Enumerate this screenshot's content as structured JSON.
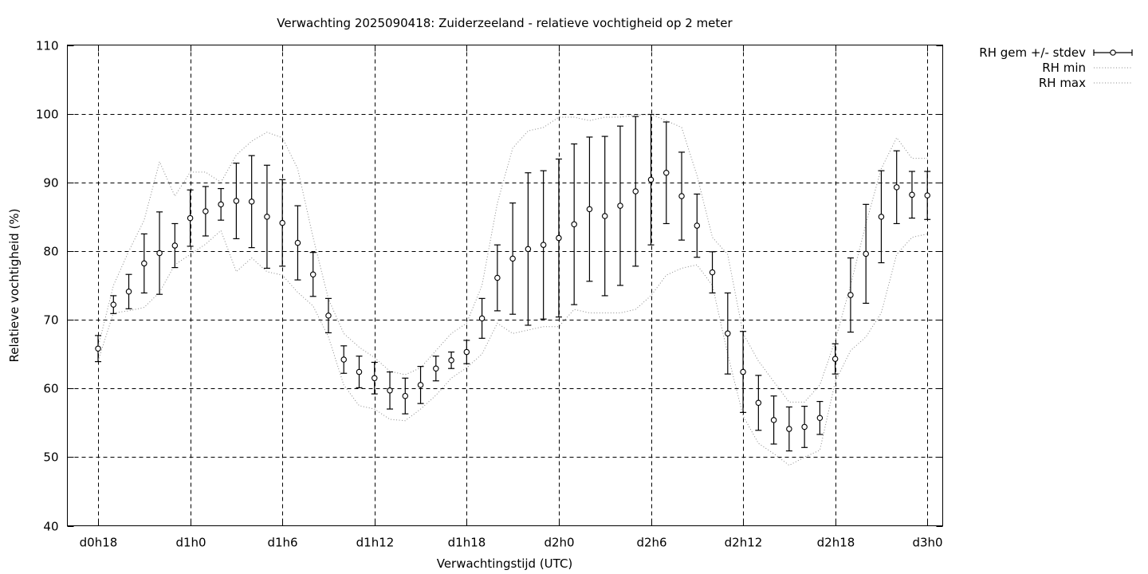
{
  "chart_data": {
    "type": "line",
    "title": "Verwachting 2025090418: Zuiderzeeland - relatieve vochtigheid op 2 meter",
    "xlabel": "Verwachtingstijd (UTC)",
    "ylabel": "Relatieve vochtigheid (%)",
    "ylim": [
      40,
      110
    ],
    "yticks": [
      40,
      50,
      60,
      70,
      80,
      90,
      100,
      110
    ],
    "xlim": [
      16,
      73
    ],
    "xticks": [
      {
        "x": 18,
        "label": "d0h18"
      },
      {
        "x": 24,
        "label": "d1h0"
      },
      {
        "x": 30,
        "label": "d1h6"
      },
      {
        "x": 36,
        "label": "d1h12"
      },
      {
        "x": 42,
        "label": "d1h18"
      },
      {
        "x": 48,
        "label": "d2h0"
      },
      {
        "x": 54,
        "label": "d2h6"
      },
      {
        "x": 60,
        "label": "d2h12"
      },
      {
        "x": 66,
        "label": "d2h18"
      },
      {
        "x": 72,
        "label": "d3h0"
      }
    ],
    "grid": true,
    "legend_position": "outside-top-right",
    "series": [
      {
        "name": "RH gem +/- stdev",
        "style": "errorbars",
        "x": [
          18,
          19,
          20,
          21,
          22,
          23,
          24,
          25,
          26,
          27,
          28,
          29,
          30,
          31,
          32,
          33,
          34,
          35,
          36,
          37,
          38,
          39,
          40,
          41,
          42,
          43,
          44,
          45,
          46,
          47,
          48,
          49,
          50,
          51,
          52,
          53,
          54,
          55,
          56,
          57,
          58,
          59,
          60,
          61,
          62,
          63,
          64,
          65,
          66,
          67,
          68,
          69,
          70,
          71,
          72
        ],
        "mean": [
          65.8,
          72.2,
          74.1,
          78.2,
          79.7,
          80.8,
          84.8,
          85.8,
          86.8,
          87.3,
          87.2,
          85.0,
          84.1,
          81.2,
          76.6,
          70.6,
          64.2,
          62.4,
          61.5,
          59.7,
          58.9,
          60.5,
          62.9,
          64.1,
          65.3,
          70.2,
          76.1,
          78.9,
          80.3,
          80.9,
          81.9,
          83.9,
          86.1,
          85.1,
          86.6,
          88.7,
          90.4,
          91.4,
          88.0,
          83.7,
          76.9,
          68.0,
          62.4,
          57.9,
          55.4,
          54.1,
          54.4,
          55.7,
          64.3,
          73.6,
          79.6,
          85.0,
          89.3,
          88.2,
          88.1
        ],
        "sd": [
          1.9,
          1.3,
          2.5,
          4.3,
          6.0,
          3.2,
          4.1,
          3.6,
          2.3,
          5.5,
          6.7,
          7.5,
          6.3,
          5.4,
          3.2,
          2.5,
          2.0,
          2.3,
          2.3,
          2.7,
          2.6,
          2.7,
          1.8,
          1.2,
          1.7,
          2.9,
          4.8,
          8.1,
          11.1,
          10.8,
          11.5,
          11.7,
          10.5,
          11.6,
          11.6,
          10.9,
          9.5,
          7.4,
          6.4,
          4.6,
          3.0,
          5.9,
          5.9,
          4.0,
          3.5,
          3.2,
          3.0,
          2.4,
          2.2,
          5.4,
          7.2,
          6.7,
          5.3,
          3.4,
          3.5
        ]
      },
      {
        "name": "RH min",
        "style": "dotted",
        "x": [
          18,
          19,
          20,
          21,
          22,
          23,
          24,
          25,
          26,
          27,
          28,
          29,
          30,
          31,
          32,
          33,
          34,
          35,
          36,
          37,
          38,
          39,
          40,
          41,
          42,
          43,
          44,
          45,
          46,
          47,
          48,
          49,
          50,
          51,
          52,
          53,
          54,
          55,
          56,
          57,
          58,
          59,
          60,
          61,
          62,
          63,
          64,
          65,
          66,
          67,
          68,
          69,
          70,
          71,
          72
        ],
        "values": [
          64.0,
          71.0,
          71.3,
          71.8,
          74.0,
          78.0,
          79.5,
          81.0,
          83.0,
          77.0,
          79.0,
          77.0,
          76.5,
          74.0,
          72.0,
          67.5,
          60.5,
          57.5,
          57.0,
          55.5,
          55.3,
          57.0,
          59.0,
          61.5,
          63.0,
          65.0,
          69.5,
          68.0,
          68.5,
          69.0,
          69.0,
          71.5,
          71.0,
          71.0,
          71.0,
          71.5,
          73.5,
          76.5,
          77.5,
          78.0,
          75.0,
          65.0,
          56.0,
          52.0,
          50.5,
          48.8,
          50.0,
          51.0,
          61.0,
          65.5,
          67.5,
          71.0,
          79.5,
          82.0,
          82.5
        ]
      },
      {
        "name": "RH max",
        "style": "dotted",
        "x": [
          18,
          19,
          20,
          21,
          22,
          23,
          24,
          25,
          26,
          27,
          28,
          29,
          30,
          31,
          32,
          33,
          34,
          35,
          36,
          37,
          38,
          39,
          40,
          41,
          42,
          43,
          44,
          45,
          46,
          47,
          48,
          49,
          50,
          51,
          52,
          53,
          54,
          55,
          56,
          57,
          58,
          59,
          60,
          61,
          62,
          63,
          64,
          65,
          66,
          67,
          68,
          69,
          70,
          71,
          72
        ],
        "values": [
          66.0,
          75.0,
          80.0,
          84.5,
          93.0,
          88.0,
          91.5,
          91.5,
          90.0,
          94.0,
          96.0,
          97.3,
          96.5,
          92.0,
          82.0,
          73.0,
          68.0,
          66.0,
          64.5,
          62.5,
          62.0,
          63.0,
          65.5,
          68.0,
          69.5,
          75.0,
          87.0,
          95.0,
          97.5,
          98.0,
          99.5,
          99.5,
          99.0,
          99.5,
          99.5,
          99.8,
          99.9,
          99.0,
          98.0,
          91.0,
          82.0,
          79.5,
          68.0,
          64.0,
          61.0,
          58.0,
          58.0,
          60.5,
          67.0,
          75.0,
          84.0,
          92.0,
          96.5,
          93.5,
          93.5
        ]
      }
    ]
  }
}
